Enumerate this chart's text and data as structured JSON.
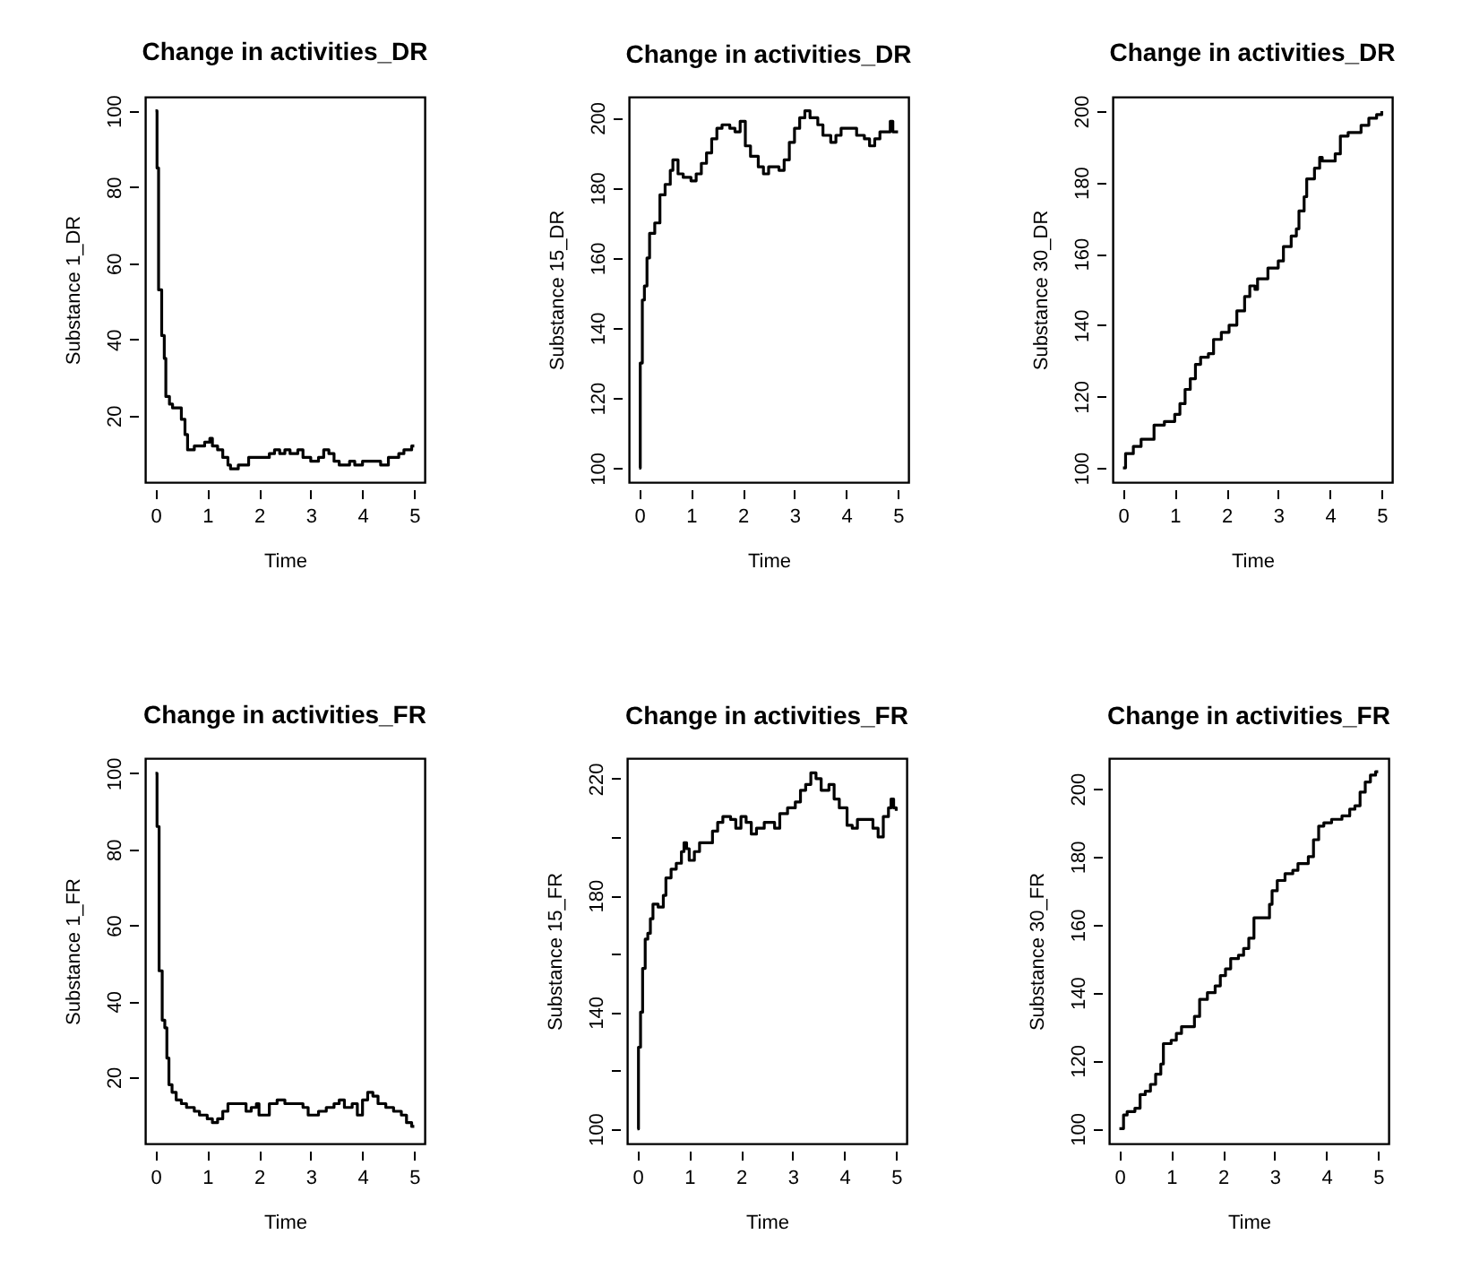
{
  "chart_data": [
    {
      "type": "step",
      "title": "Change in activities_DR",
      "xlabel": "Time",
      "ylabel": "Substance 1_DR",
      "grid": false,
      "xlim": [
        -0.2,
        5.2
      ],
      "ylim": [
        2.5,
        103.7
      ],
      "xticks": [
        0,
        1,
        2,
        3,
        4,
        5
      ],
      "yticks": [
        20,
        40,
        60,
        80,
        100
      ],
      "x": [
        0,
        0.03,
        0.06,
        0.12,
        0.17,
        0.2,
        0.27,
        0.33,
        0.4,
        0.5,
        0.57,
        0.62,
        0.75,
        0.85,
        0.95,
        1.05,
        1.1,
        1.2,
        1.3,
        1.4,
        1.45,
        1.6,
        1.8,
        2.0,
        2.2,
        2.3,
        2.4,
        2.5,
        2.6,
        2.75,
        2.85,
        3.0,
        3.15,
        3.25,
        3.35,
        3.45,
        3.55,
        3.75,
        3.85,
        4.0,
        4.2,
        4.35,
        4.5,
        4.7,
        4.8,
        4.95,
        5.0
      ],
      "series": [
        {
          "color": "#000000",
          "values": [
            100,
            85,
            53,
            41,
            35,
            25,
            23,
            22,
            22,
            19,
            15,
            11,
            12,
            12,
            13,
            14,
            12,
            11,
            9,
            7,
            6,
            7,
            9,
            9,
            10,
            11,
            10,
            11,
            10,
            11,
            9,
            8,
            9,
            11,
            10,
            8,
            7,
            8,
            7,
            8,
            8,
            7,
            9,
            10,
            11,
            12,
            12
          ]
        }
      ]
    },
    {
      "type": "step",
      "title": "Change in activities_DR",
      "xlabel": "Time",
      "ylabel": "Substance 15_DR",
      "grid": false,
      "xlim": [
        -0.2,
        5.2
      ],
      "ylim": [
        96,
        206
      ],
      "xticks": [
        0,
        1,
        2,
        3,
        4,
        5
      ],
      "yticks": [
        100,
        120,
        140,
        160,
        180,
        200
      ],
      "x": [
        0,
        0.02,
        0.06,
        0.1,
        0.15,
        0.2,
        0.3,
        0.4,
        0.5,
        0.6,
        0.65,
        0.75,
        0.85,
        1.0,
        1.1,
        1.2,
        1.3,
        1.4,
        1.5,
        1.6,
        1.75,
        1.85,
        1.95,
        2.05,
        2.15,
        2.3,
        2.4,
        2.5,
        2.6,
        2.7,
        2.8,
        2.9,
        3.0,
        3.1,
        3.2,
        3.3,
        3.45,
        3.55,
        3.7,
        3.8,
        3.9,
        4.05,
        4.2,
        4.35,
        4.45,
        4.55,
        4.65,
        4.8,
        4.85,
        4.9,
        5.0
      ],
      "series": [
        {
          "color": "#000000",
          "values": [
            100,
            130,
            148,
            152,
            160,
            167,
            170,
            178,
            181,
            185,
            188,
            184,
            183,
            182,
            184,
            187,
            190,
            194,
            197,
            198,
            197,
            196,
            199,
            192,
            189,
            186,
            184,
            186,
            186,
            185,
            188,
            193,
            197,
            200,
            202,
            200,
            198,
            195,
            193,
            195,
            197,
            197,
            195,
            194,
            192,
            194,
            196,
            196,
            199,
            196,
            196
          ]
        }
      ]
    },
    {
      "type": "step",
      "title": "Change in activities_DR",
      "xlabel": "Time",
      "ylabel": "Substance 30_DR",
      "grid": false,
      "xlim": [
        -0.2,
        5.2
      ],
      "ylim": [
        96,
        204
      ],
      "xticks": [
        0,
        1,
        2,
        3,
        4,
        5
      ],
      "yticks": [
        100,
        120,
        140,
        160,
        180,
        200
      ],
      "x": [
        0,
        0.05,
        0.2,
        0.35,
        0.6,
        0.8,
        1.0,
        1.1,
        1.2,
        1.3,
        1.4,
        1.5,
        1.65,
        1.75,
        1.9,
        2.05,
        2.2,
        2.35,
        2.45,
        2.55,
        2.6,
        2.8,
        3.0,
        3.1,
        3.25,
        3.35,
        3.4,
        3.5,
        3.55,
        3.7,
        3.8,
        3.85,
        4.0,
        4.1,
        4.2,
        4.35,
        4.5,
        4.6,
        4.75,
        4.9,
        5.0
      ],
      "series": [
        {
          "color": "#000000",
          "values": [
            100,
            104,
            106,
            108,
            112,
            113,
            115,
            118,
            122,
            125,
            129,
            131,
            132,
            136,
            138,
            140,
            144,
            148,
            151,
            150,
            153,
            156,
            158,
            162,
            165,
            167,
            172,
            176,
            181,
            184,
            187,
            186,
            186,
            188,
            193,
            194,
            194,
            196,
            198,
            199,
            200
          ]
        }
      ]
    },
    {
      "type": "step",
      "title": "Change in activities_FR",
      "xlabel": "Time",
      "ylabel": "Substance 1_FR",
      "grid": false,
      "xlim": [
        -0.2,
        5.2
      ],
      "ylim": [
        2.5,
        104
      ],
      "xticks": [
        0,
        1,
        2,
        3,
        4,
        5
      ],
      "yticks": [
        20,
        40,
        60,
        80,
        100
      ],
      "x": [
        0,
        0.03,
        0.07,
        0.13,
        0.18,
        0.22,
        0.26,
        0.32,
        0.4,
        0.5,
        0.6,
        0.75,
        0.85,
        1.0,
        1.1,
        1.2,
        1.3,
        1.4,
        1.6,
        1.75,
        1.85,
        1.95,
        2.0,
        2.1,
        2.2,
        2.35,
        2.5,
        2.7,
        2.85,
        2.95,
        3.15,
        3.3,
        3.45,
        3.55,
        3.65,
        3.8,
        3.9,
        4.0,
        4.1,
        4.2,
        4.3,
        4.45,
        4.6,
        4.75,
        4.85,
        4.95,
        5.0
      ],
      "series": [
        {
          "color": "#000000",
          "values": [
            100,
            86,
            48,
            35,
            33,
            25,
            18,
            16,
            14,
            13,
            12,
            11,
            10,
            9,
            8,
            9,
            11,
            13,
            13,
            11,
            12,
            13,
            10,
            10,
            13,
            14,
            13,
            13,
            12,
            10,
            11,
            12,
            13,
            14,
            12,
            13,
            10,
            14,
            16,
            15,
            13,
            12,
            11,
            10,
            8,
            7,
            7
          ]
        }
      ]
    },
    {
      "type": "step",
      "title": "Change in activities_FR",
      "xlabel": "Time",
      "ylabel": "Substance 15_FR",
      "grid": false,
      "xlim": [
        -0.2,
        5.2
      ],
      "ylim": [
        95,
        227
      ],
      "xticks": [
        0,
        1,
        2,
        3,
        4,
        5
      ],
      "yticks": [
        100,
        {
          "value": 120,
          "label": null
        },
        140,
        {
          "value": 160,
          "label": null
        },
        180,
        {
          "value": 200,
          "label": null
        },
        220
      ],
      "x": [
        0,
        0.02,
        0.06,
        0.1,
        0.15,
        0.2,
        0.25,
        0.3,
        0.4,
        0.5,
        0.55,
        0.65,
        0.75,
        0.85,
        0.9,
        0.95,
        1.0,
        1.1,
        1.2,
        1.35,
        1.45,
        1.55,
        1.65,
        1.8,
        1.9,
        2.0,
        2.1,
        2.2,
        2.3,
        2.45,
        2.55,
        2.65,
        2.75,
        2.9,
        3.05,
        3.15,
        3.25,
        3.35,
        3.45,
        3.55,
        3.7,
        3.8,
        3.9,
        4.05,
        4.15,
        4.25,
        4.45,
        4.55,
        4.65,
        4.75,
        4.85,
        4.9,
        4.95,
        5.0
      ],
      "series": [
        {
          "color": "#000000",
          "values": [
            100,
            128,
            140,
            155,
            165,
            167,
            172,
            177,
            176,
            180,
            186,
            189,
            191,
            195,
            198,
            196,
            192,
            195,
            198,
            198,
            202,
            205,
            207,
            206,
            203,
            207,
            205,
            201,
            203,
            205,
            205,
            203,
            208,
            210,
            212,
            216,
            218,
            222,
            220,
            216,
            218,
            213,
            210,
            204,
            203,
            206,
            206,
            203,
            200,
            207,
            210,
            213,
            210,
            209
          ]
        }
      ]
    },
    {
      "type": "step",
      "title": "Change in activities_FR",
      "xlabel": "Time",
      "ylabel": "Substance 30_FR",
      "grid": false,
      "xlim": [
        -0.2,
        5.2
      ],
      "ylim": [
        95.6,
        209
      ],
      "xticks": [
        0,
        1,
        2,
        3,
        4,
        5
      ],
      "yticks": [
        100,
        120,
        140,
        160,
        180,
        200
      ],
      "x": [
        0,
        0.08,
        0.15,
        0.3,
        0.4,
        0.5,
        0.6,
        0.7,
        0.8,
        0.85,
        1.0,
        1.1,
        1.2,
        1.35,
        1.45,
        1.55,
        1.7,
        1.85,
        1.95,
        2.05,
        2.15,
        2.3,
        2.4,
        2.5,
        2.6,
        2.8,
        2.9,
        2.95,
        3.05,
        3.2,
        3.35,
        3.45,
        3.65,
        3.75,
        3.85,
        3.95,
        4.1,
        4.3,
        4.45,
        4.55,
        4.65,
        4.75,
        4.85,
        4.95,
        5.0
      ],
      "series": [
        {
          "color": "#000000",
          "values": [
            100,
            104,
            105,
            106,
            110,
            111,
            113,
            116,
            119,
            125,
            126,
            128,
            130,
            130,
            133,
            138,
            140,
            142,
            145,
            147,
            150,
            151,
            153,
            156,
            162,
            162,
            166,
            170,
            173,
            175,
            176,
            178,
            180,
            185,
            189,
            190,
            191,
            192,
            194,
            195,
            199,
            202,
            204,
            205,
            205
          ]
        }
      ]
    }
  ]
}
